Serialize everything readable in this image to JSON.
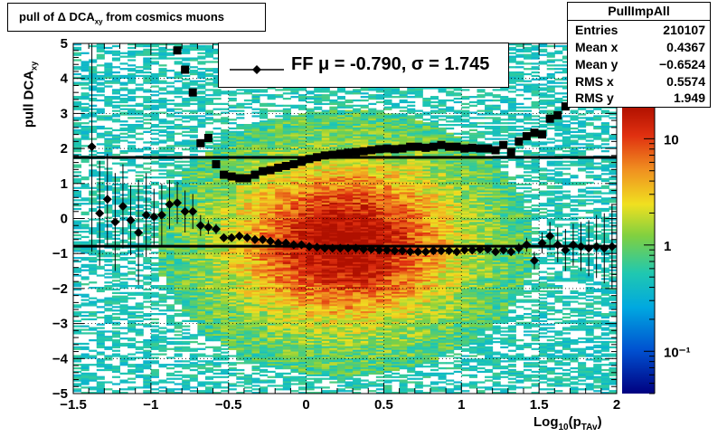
{
  "title": {
    "text": "pull of Δ DCA",
    "sub": "xy",
    "suffix": " from cosmics muons"
  },
  "stats": {
    "name": "PullImpAll",
    "rows": [
      {
        "key": "Entries",
        "value": "210107"
      },
      {
        "key": "Mean x",
        "value": "0.4367"
      },
      {
        "key": "Mean y",
        "value": "−0.6524"
      },
      {
        "key": "RMS x",
        "value": "0.5574"
      },
      {
        "key": "RMS y",
        "value": "1.949"
      }
    ]
  },
  "legend": {
    "label": "FF μ = -0.790, σ =   1.745"
  },
  "axes": {
    "ylabel": "pull DCA",
    "ylabel_sub": "xy",
    "xlabel": "Log",
    "xlabel_sub": "10",
    "xlabel_suffix": "(p",
    "xlabel_sub2": "TAv",
    "xlabel_end": ")"
  },
  "chart_data": {
    "type": "heatmap",
    "xlim": [
      -1.5,
      2
    ],
    "ylim": [
      -5,
      5
    ],
    "x_ticks": [
      "−1.5",
      "−1",
      "−0.5",
      "0",
      "0.5",
      "1",
      "1.5",
      "2"
    ],
    "x_tick_values": [
      -1.5,
      -1,
      -0.5,
      0,
      0.5,
      1,
      1.5,
      2
    ],
    "y_ticks": [
      "−5",
      "−4",
      "−3",
      "−2",
      "−1",
      "0",
      "1",
      "2",
      "3",
      "4",
      "5"
    ],
    "y_tick_values": [
      -5,
      -4,
      -3,
      -2,
      -1,
      0,
      1,
      2,
      3,
      4,
      5
    ],
    "z_scale": "log",
    "z_ticks": [
      "10",
      "1",
      "10⁻¹"
    ],
    "z_tick_values": [
      10,
      1,
      0.1
    ],
    "z_range": [
      0.04,
      20
    ],
    "fit_lines": {
      "mean": -0.79,
      "sigma": 1.745
    },
    "series": [
      {
        "name": "mean",
        "x": [
          -1.38,
          -1.33,
          -1.28,
          -1.23,
          -1.18,
          -1.13,
          -1.08,
          -1.03,
          -0.98,
          -0.93,
          -0.88,
          -0.83,
          -0.78,
          -0.73,
          -0.68,
          -0.63,
          -0.58,
          -0.53,
          -0.48,
          -0.43,
          -0.38,
          -0.33,
          -0.28,
          -0.23,
          -0.18,
          -0.13,
          -0.08,
          -0.03,
          0.02,
          0.07,
          0.12,
          0.17,
          0.22,
          0.27,
          0.32,
          0.37,
          0.42,
          0.47,
          0.52,
          0.57,
          0.62,
          0.67,
          0.72,
          0.77,
          0.82,
          0.87,
          0.92,
          0.97,
          1.02,
          1.07,
          1.12,
          1.17,
          1.22,
          1.27,
          1.32,
          1.37,
          1.42,
          1.47,
          1.52,
          1.57,
          1.62,
          1.67,
          1.72,
          1.77,
          1.82,
          1.87,
          1.92,
          1.97
        ],
        "y": [
          2.05,
          0.15,
          0.55,
          -0.1,
          0.35,
          -0.05,
          -0.4,
          0.1,
          0.05,
          0.1,
          0.4,
          0.45,
          0.2,
          0.2,
          -0.2,
          -0.25,
          -0.3,
          -0.55,
          -0.55,
          -0.5,
          -0.55,
          -0.6,
          -0.6,
          -0.65,
          -0.7,
          -0.7,
          -0.75,
          -0.75,
          -0.8,
          -0.82,
          -0.85,
          -0.85,
          -0.85,
          -0.85,
          -0.85,
          -0.88,
          -0.88,
          -0.9,
          -0.9,
          -0.92,
          -0.92,
          -0.95,
          -0.95,
          -0.95,
          -0.92,
          -0.92,
          -0.92,
          -0.95,
          -0.9,
          -0.9,
          -0.88,
          -0.88,
          -0.95,
          -0.9,
          -0.95,
          -0.85,
          -0.75,
          -1.2,
          -0.7,
          -0.5,
          -0.75,
          -0.9,
          -0.75,
          -0.8,
          -0.85,
          -0.8,
          -0.85,
          -0.8
        ],
        "err": [
          3,
          1.5,
          1.3,
          1.4,
          1.2,
          1.0,
          1.5,
          1.2,
          0.8,
          0.9,
          0.7,
          0.6,
          0.6,
          0.5,
          0.3,
          0.2,
          0.15,
          0.1,
          0.08,
          0.06,
          0.05,
          0.05,
          0.04,
          0.04,
          0.03,
          0.03,
          0.03,
          0.03,
          0.03,
          0.03,
          0.03,
          0.03,
          0.03,
          0.03,
          0.03,
          0.03,
          0.03,
          0.03,
          0.03,
          0.03,
          0.03,
          0.04,
          0.04,
          0.04,
          0.04,
          0.05,
          0.05,
          0.05,
          0.06,
          0.06,
          0.07,
          0.08,
          0.1,
          0.1,
          0.12,
          0.15,
          0.2,
          0.25,
          0.3,
          0.4,
          0.5,
          0.6,
          0.6,
          0.7,
          0.8,
          0.9,
          1.0,
          1.2
        ]
      },
      {
        "name": "rms",
        "x": [
          -0.83,
          -0.78,
          -0.73,
          -0.68,
          -0.63,
          -0.58,
          -0.53,
          -0.48,
          -0.43,
          -0.38,
          -0.33,
          -0.28,
          -0.23,
          -0.18,
          -0.13,
          -0.08,
          -0.03,
          0.02,
          0.07,
          0.12,
          0.17,
          0.22,
          0.27,
          0.32,
          0.37,
          0.42,
          0.47,
          0.52,
          0.57,
          0.62,
          0.67,
          0.72,
          0.77,
          0.82,
          0.87,
          0.92,
          0.97,
          1.02,
          1.07,
          1.12,
          1.17,
          1.22,
          1.27,
          1.32,
          1.37,
          1.42,
          1.47,
          1.52,
          1.57,
          1.62,
          1.67,
          1.72,
          1.77
        ],
        "y": [
          4.8,
          4.25,
          3.6,
          2.15,
          2.3,
          1.55,
          1.25,
          1.2,
          1.15,
          1.15,
          1.25,
          1.35,
          1.38,
          1.45,
          1.5,
          1.55,
          1.62,
          1.7,
          1.75,
          1.8,
          1.82,
          1.85,
          1.88,
          1.9,
          1.92,
          1.95,
          1.98,
          2.0,
          1.98,
          2.0,
          2.05,
          2.05,
          2.02,
          2.05,
          2.1,
          2.05,
          2.05,
          2.0,
          2.02,
          2.0,
          2.0,
          1.95,
          2.1,
          1.9,
          2.2,
          2.35,
          2.45,
          2.4,
          2.85,
          2.95,
          3.2,
          3.5,
          3.8
        ]
      }
    ]
  }
}
